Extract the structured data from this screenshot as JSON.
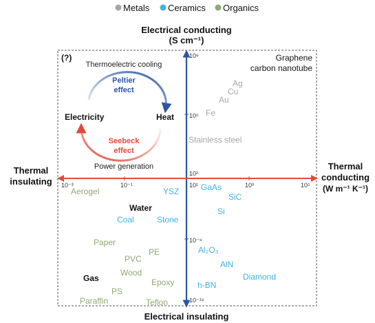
{
  "legend": [
    {
      "label": "Metals",
      "color": "#a6a6a6"
    },
    {
      "label": "Ceramics",
      "color": "#3fb2e0"
    },
    {
      "label": "Organics",
      "color": "#8fa875"
    }
  ],
  "colors": {
    "metal": "#a6a6a6",
    "ceramic": "#3fb2e0",
    "organic": "#8fa875",
    "axis_vertical": "#2c55a6",
    "axis_horizontal": "#e04a3c",
    "text": "#111111",
    "box": "#555555"
  },
  "axis_labels": {
    "top": "Electrical conducting",
    "top_unit": "(S cm⁻¹)",
    "bottom": "Electrical insulating",
    "left_line1": "Thermal",
    "left_line2": "insulating",
    "right_line1": "Thermal",
    "right_line2": "conducting",
    "right_line3": "(W m⁻¹ K⁻¹)"
  },
  "x_ticks": [
    "10⁻³",
    "10⁻¹",
    "10¹",
    "10³",
    "10⁵"
  ],
  "y_ticks": [
    "10⁸",
    "10⁵",
    "10²",
    "10⁻⁸",
    "10⁻¹⁸"
  ],
  "inset": {
    "tag": "(?)",
    "top_label": "Thermoelectric cooling",
    "peltier": "Peltier\neffect",
    "seebeck": "Seebeck\neffect",
    "left_node": "Electricity",
    "right_node": "Heat",
    "bottom_label": "Power generation"
  },
  "corner_label": "Graphene\ncarbon nanotube",
  "materials": [
    {
      "name": "Ag",
      "category": "metal"
    },
    {
      "name": "Cu",
      "category": "metal"
    },
    {
      "name": "Au",
      "category": "metal"
    },
    {
      "name": "Fe",
      "category": "metal"
    },
    {
      "name": "Stainless steel",
      "category": "metal"
    },
    {
      "name": "Aerogel",
      "category": "organic"
    },
    {
      "name": "YSZ",
      "category": "ceramic"
    },
    {
      "name": "GaAs",
      "category": "ceramic"
    },
    {
      "name": "SiC",
      "category": "ceramic"
    },
    {
      "name": "Si",
      "category": "ceramic"
    },
    {
      "name": "Water",
      "category": "other"
    },
    {
      "name": "Coal",
      "category": "ceramic"
    },
    {
      "name": "Stone",
      "category": "ceramic"
    },
    {
      "name": "Paper",
      "category": "organic"
    },
    {
      "name": "PE",
      "category": "organic"
    },
    {
      "name": "PVC",
      "category": "organic"
    },
    {
      "name": "Wood",
      "category": "organic"
    },
    {
      "name": "Gas",
      "category": "other"
    },
    {
      "name": "Epoxy",
      "category": "organic"
    },
    {
      "name": "PS",
      "category": "organic"
    },
    {
      "name": "Paraffin",
      "category": "organic"
    },
    {
      "name": "Teflon",
      "category": "organic"
    },
    {
      "name": "Al₂O₃",
      "category": "ceramic"
    },
    {
      "name": "AlN",
      "category": "ceramic"
    },
    {
      "name": "Diamond",
      "category": "ceramic"
    },
    {
      "name": "h-BN",
      "category": "ceramic"
    }
  ]
}
